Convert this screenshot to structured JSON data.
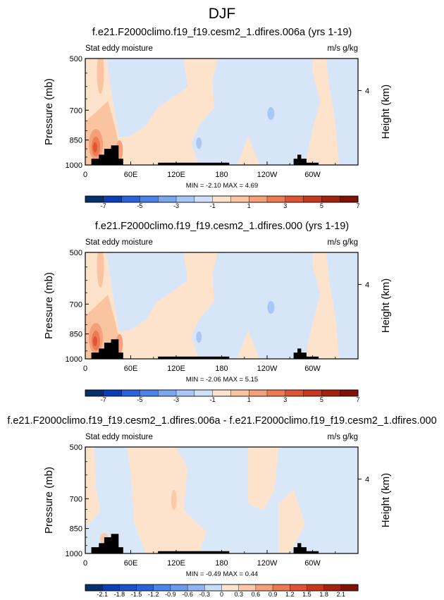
{
  "page_title": "DJF",
  "colors": {
    "land": "#000000",
    "frame": "#000000"
  },
  "chart_data": [
    {
      "type": "heatmap",
      "title": "f.e21.F2000climo.f19_f19.cesm2_1.dfires.006a (yrs 1-19)",
      "left_label": "Stat eddy moisture",
      "right_label": "m/s g/kg",
      "ylabel": "Pressure (mb)",
      "y2label": "Height (km)",
      "yticks": [
        500,
        700,
        850,
        1000
      ],
      "y2ticks": [
        4
      ],
      "xticks": [
        "0",
        "60E",
        "120E",
        "180",
        "120W",
        "60W"
      ],
      "xrange_deg_east": [
        0,
        360
      ],
      "yrange_mb": [
        1000,
        500
      ],
      "y_scale": "log-pressure",
      "stats": "MIN = -2.10   MAX =   4.69",
      "min": -2.1,
      "max": 4.69,
      "colorbar": {
        "labels": [
          "-7",
          "-5",
          "-3",
          "-1",
          "1",
          "3",
          "5",
          "7"
        ],
        "colors": [
          "#08306b",
          "#0b3fb5",
          "#2a63d9",
          "#4a84e8",
          "#7aa6f0",
          "#a8c6f6",
          "#cfe1fa",
          "#fde3cc",
          "#fbc4a1",
          "#f5a07a",
          "#ee7a51",
          "#e05531",
          "#c6391c",
          "#a5220e",
          "#7f1105"
        ]
      }
    },
    {
      "type": "heatmap",
      "title": "f.e21.F2000climo.f19_f19.cesm2_1.dfires.000 (yrs 1-19)",
      "left_label": "Stat eddy moisture",
      "right_label": "m/s g/kg",
      "ylabel": "Pressure (mb)",
      "y2label": "Height (km)",
      "yticks": [
        500,
        700,
        850,
        1000
      ],
      "y2ticks": [
        4
      ],
      "xticks": [
        "0",
        "60E",
        "120E",
        "180",
        "120W",
        "60W"
      ],
      "xrange_deg_east": [
        0,
        360
      ],
      "yrange_mb": [
        1000,
        500
      ],
      "y_scale": "log-pressure",
      "stats": "MIN = -2.06   MAX =   5.15",
      "min": -2.06,
      "max": 5.15,
      "colorbar": {
        "labels": [
          "-7",
          "-5",
          "-3",
          "-1",
          "1",
          "3",
          "5",
          "7"
        ],
        "colors": [
          "#08306b",
          "#0b3fb5",
          "#2a63d9",
          "#4a84e8",
          "#7aa6f0",
          "#a8c6f6",
          "#cfe1fa",
          "#fde3cc",
          "#fbc4a1",
          "#f5a07a",
          "#ee7a51",
          "#e05531",
          "#c6391c",
          "#a5220e",
          "#7f1105"
        ]
      }
    },
    {
      "type": "heatmap",
      "title": "f.e21.F2000climo.f19_f19.cesm2_1.dfires.006a - f.e21.F2000climo.f19_f19.cesm2_1.dfires.000",
      "left_label": "Stat eddy moisture",
      "right_label": "m/s g/kg",
      "ylabel": "Pressure (mb)",
      "y2label": "Height (km)",
      "yticks": [
        500,
        700,
        850,
        1000
      ],
      "y2ticks": [
        4
      ],
      "xticks": [
        "0",
        "60E",
        "120E",
        "180",
        "120W",
        "60W"
      ],
      "xrange_deg_east": [
        0,
        360
      ],
      "yrange_mb": [
        1000,
        500
      ],
      "y_scale": "log-pressure",
      "stats": "MIN = -0.49   MAX =   0.44",
      "min": -0.49,
      "max": 0.44,
      "colorbar": {
        "labels": [
          "-2.1",
          "-1.8",
          "-1.5",
          "-1.2",
          "-0.9",
          "-0.6",
          "-0.3",
          "0",
          "0.3",
          "0.6",
          "0.9",
          "1.2",
          "1.5",
          "1.8",
          "2.1"
        ],
        "colors": [
          "#08306b",
          "#0b3fb5",
          "#1d52cc",
          "#2a63d9",
          "#4a84e8",
          "#6a9bee",
          "#8fb6f3",
          "#c6dcf8",
          "#fde3cc",
          "#fbc9a8",
          "#f5a07a",
          "#ee7a51",
          "#e05531",
          "#c6391c",
          "#a5220e",
          "#7f1105"
        ]
      }
    }
  ]
}
